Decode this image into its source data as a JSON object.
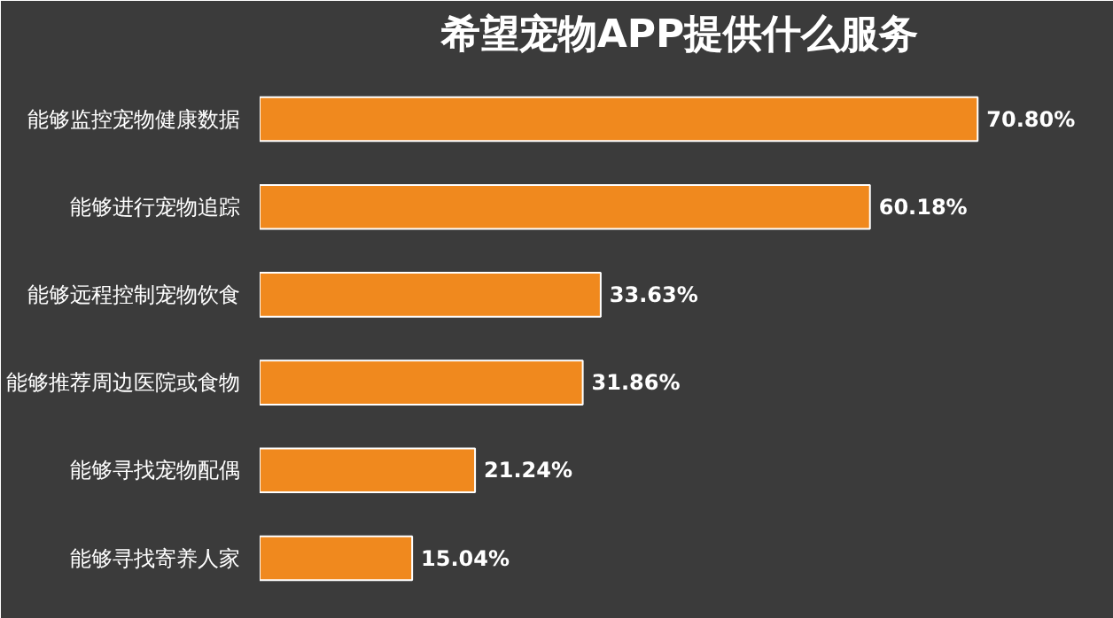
{
  "chart_data": {
    "type": "bar",
    "orientation": "horizontal",
    "title": "希望宠物APP提供什么服务",
    "categories": [
      "能够监控宠物健康数据",
      "能够进行宠物追踪",
      "能够远程控制宠物饮食",
      "能够推荐周边医院或食物",
      "能够寻找宠物配偶",
      "能够寻找寄养人家"
    ],
    "values": [
      70.8,
      60.18,
      33.63,
      31.86,
      21.24,
      15.04
    ],
    "value_labels": [
      "70.80%",
      "60.18%",
      "33.63%",
      "31.86%",
      "21.24%",
      "15.04%"
    ],
    "color": "#f0891e"
  }
}
